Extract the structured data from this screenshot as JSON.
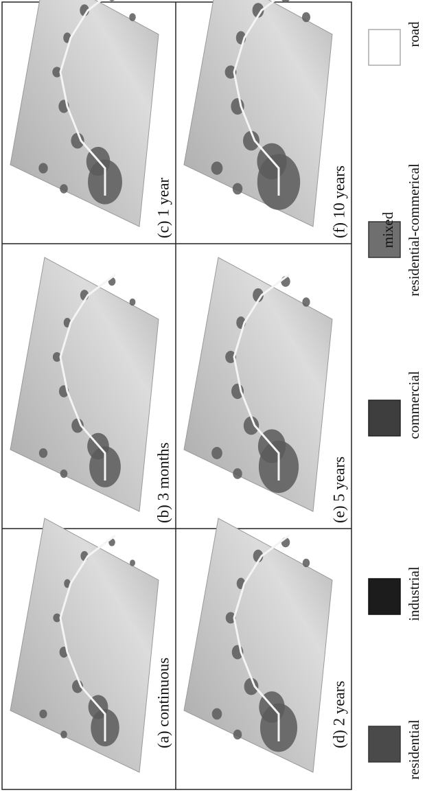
{
  "figure": {
    "panels": [
      {
        "caption": "(a) continuous"
      },
      {
        "caption": "(b) 3 months"
      },
      {
        "caption": "(c) 1 year"
      },
      {
        "caption": "(d) 2 years"
      },
      {
        "caption": "(e) 5 years"
      },
      {
        "caption": "(f) 10 years"
      }
    ],
    "legend": [
      {
        "lines": [
          "residential"
        ]
      },
      {
        "lines": [
          "industrial"
        ]
      },
      {
        "lines": [
          "commercial"
        ]
      },
      {
        "lines": [
          "mixed",
          "residential-commerical"
        ]
      },
      {
        "lines": [
          "road"
        ]
      }
    ]
  }
}
